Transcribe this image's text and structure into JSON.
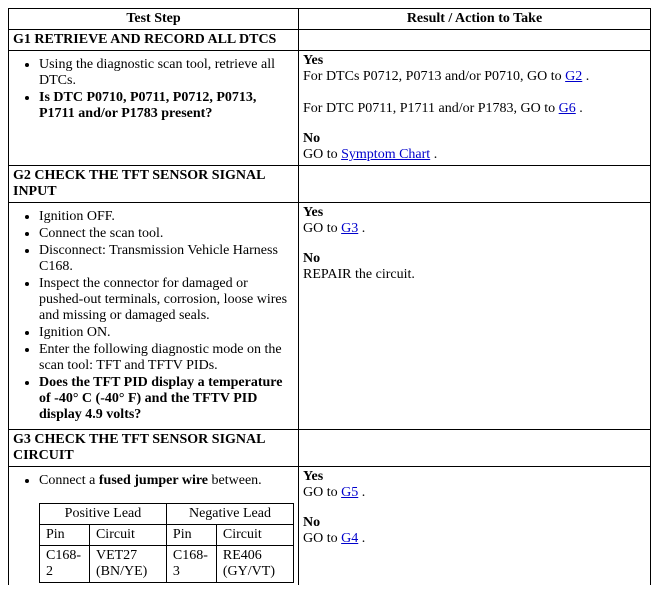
{
  "headers": {
    "test_step": "Test Step",
    "result": "Result / Action to Take"
  },
  "g1": {
    "title": "G1 RETRIEVE AND RECORD ALL DTCS",
    "li1": "Using the diagnostic scan tool, retrieve all DTCs.",
    "li2": "Is DTC P0710, P0711, P0712, P0713, P1711 and/or P1783 present?",
    "yes_label": "Yes",
    "yes_line1_a": "For DTCs P0712, P0713 and/or P0710, GO to ",
    "yes_line1_link": "G2",
    "yes_line1_b": " .",
    "yes_line2_a": "For DTC P0711, P1711 and/or P1783, GO to ",
    "yes_line2_link": "G6",
    "yes_line2_b": " .",
    "no_label": "No",
    "no_a": "GO to ",
    "no_link": "Symptom Chart",
    "no_b": " ."
  },
  "g2": {
    "title": "G2 CHECK THE TFT SENSOR SIGNAL INPUT",
    "li1": "Ignition OFF.",
    "li2": "Connect the scan tool.",
    "li3": "Disconnect: Transmission Vehicle Harness C168.",
    "li4": "Inspect the connector for damaged or pushed-out terminals, corrosion, loose wires and missing or damaged seals.",
    "li5": "Ignition ON.",
    "li6": "Enter the following diagnostic mode on the scan tool: TFT and TFTV PIDs.",
    "li7": "Does the TFT PID display a temperature of -40° C (-40° F) and the TFTV PID display 4.9 volts?",
    "yes_label": "Yes",
    "yes_a": "GO to ",
    "yes_link": "G3",
    "yes_b": " .",
    "no_label": "No",
    "no_line": "REPAIR the circuit."
  },
  "g3": {
    "title": "G3 CHECK THE TFT SENSOR SIGNAL CIRCUIT",
    "li1_a": "Connect a ",
    "li1_bold": "fused jumper wire",
    "li1_b": " between.",
    "yes_label": "Yes",
    "yes_a": "GO to ",
    "yes_link": "G5",
    "yes_b": " .",
    "no_label": "No",
    "no_a": "GO to ",
    "no_link": "G4",
    "no_b": " .",
    "table": {
      "pos_head": "Positive Lead",
      "neg_head": "Negative Lead",
      "pin_label": "Pin",
      "circuit_label": "Circuit",
      "pos_pin": "C168-2",
      "pos_circuit": "VET27 (BN/YE)",
      "neg_pin": "C168-3",
      "neg_circuit": "RE406 (GY/VT)"
    }
  }
}
